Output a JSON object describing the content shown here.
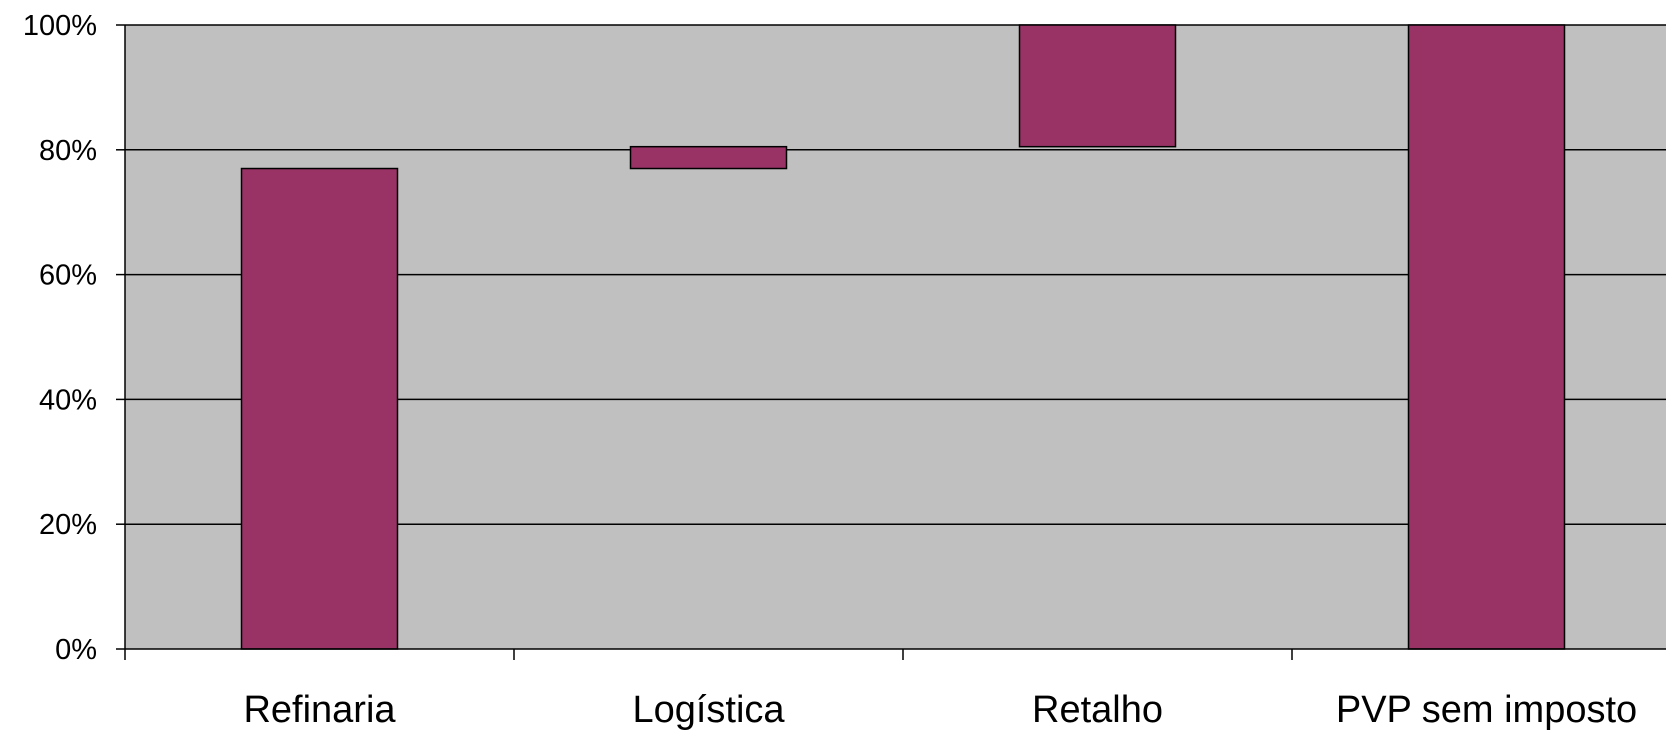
{
  "colors": {
    "plot_background": "#c0c0c0",
    "bar_fill": "#993366",
    "bar_stroke": "#000000",
    "gridline": "#000000"
  },
  "chart_data": {
    "type": "bar",
    "subtype": "waterfall",
    "title": "",
    "xlabel": "",
    "ylabel": "",
    "categories": [
      "Refinaria",
      "Logística",
      "Retalho",
      "PVP sem imposto"
    ],
    "bars": [
      {
        "category": "Refinaria",
        "start": 0,
        "end": 77
      },
      {
        "category": "Logística",
        "start": 77,
        "end": 80.5
      },
      {
        "category": "Retalho",
        "start": 80.5,
        "end": 100
      },
      {
        "category": "PVP sem imposto",
        "start": 0,
        "end": 100
      }
    ],
    "ylim": [
      0,
      100
    ],
    "yticks": [
      0,
      20,
      40,
      60,
      80,
      100
    ],
    "ytick_labels": [
      "0%",
      "20%",
      "40%",
      "60%",
      "80%",
      "100%"
    ],
    "grid": true,
    "legend": "none"
  }
}
